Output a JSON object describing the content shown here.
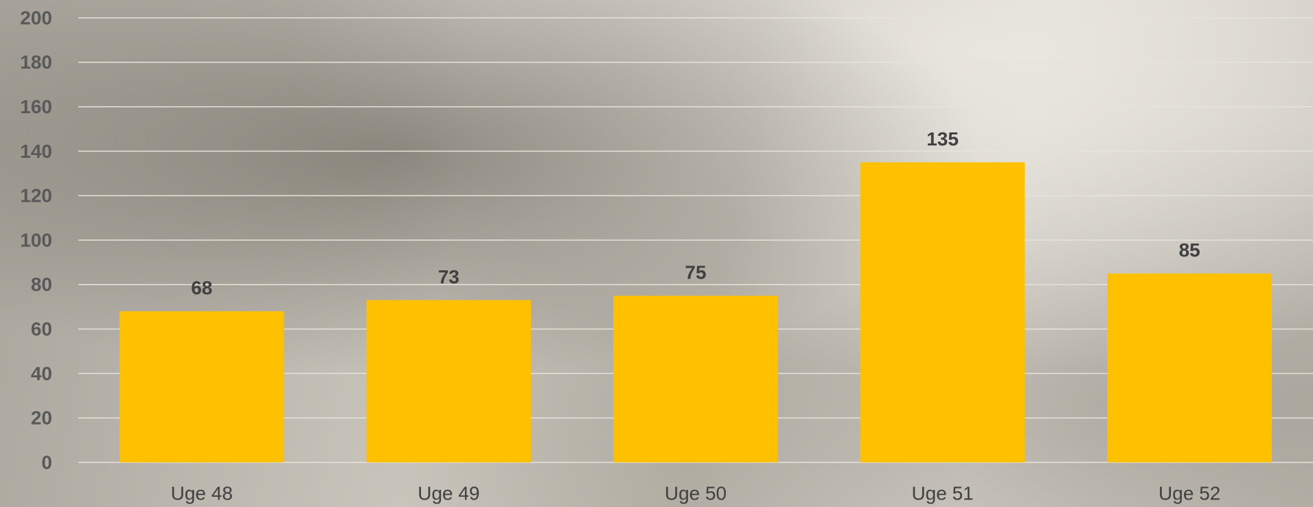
{
  "chart_data": {
    "type": "bar",
    "categories": [
      "Uge 48",
      "Uge 49",
      "Uge 50",
      "Uge 51",
      "Uge 52"
    ],
    "values": [
      68,
      73,
      75,
      135,
      85
    ],
    "color": "#ffc000",
    "ylim": [
      0,
      200
    ],
    "yticks": [
      0,
      20,
      40,
      60,
      80,
      100,
      120,
      140,
      160,
      180,
      200
    ],
    "grid": true
  }
}
